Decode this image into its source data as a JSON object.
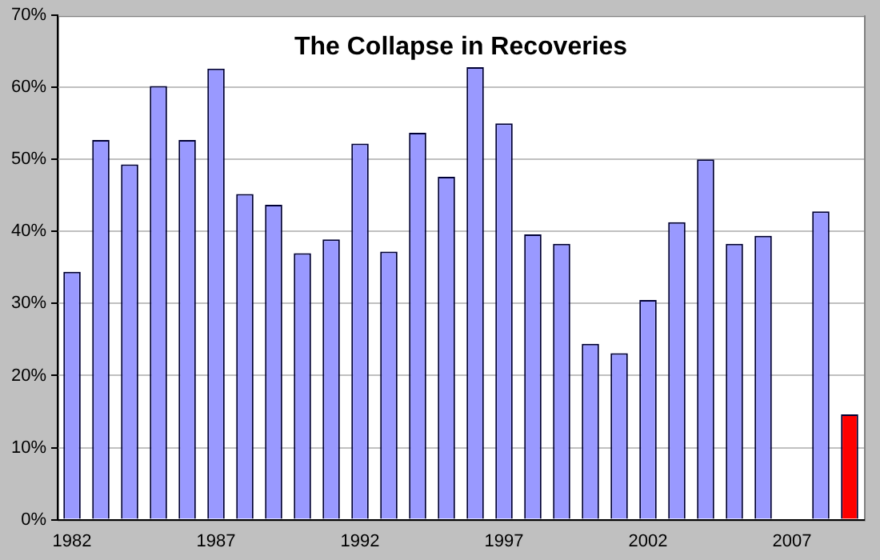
{
  "chart_data": {
    "type": "bar",
    "title": "The Collapse in Recoveries",
    "categories": [
      "1982",
      null,
      null,
      null,
      null,
      "1987",
      null,
      null,
      null,
      null,
      "1992",
      null,
      null,
      null,
      null,
      "1997",
      null,
      null,
      null,
      null,
      "2002",
      null,
      null,
      null,
      null,
      "2007",
      null,
      null
    ],
    "values": [
      34.4,
      52.7,
      49.3,
      60.2,
      52.7,
      62.6,
      45.2,
      43.7,
      37,
      38.9,
      52.2,
      37.2,
      53.7,
      47.6,
      62.8,
      55,
      39.6,
      38.3,
      24.4,
      23.1,
      30.5,
      41.3,
      50,
      38.3,
      39.4,
      null,
      42.8,
      14.6
    ],
    "colors": [
      "#9999ff",
      "#9999ff",
      "#9999ff",
      "#9999ff",
      "#9999ff",
      "#9999ff",
      "#9999ff",
      "#9999ff",
      "#9999ff",
      "#9999ff",
      "#9999ff",
      "#9999ff",
      "#9999ff",
      "#9999ff",
      "#9999ff",
      "#9999ff",
      "#9999ff",
      "#9999ff",
      "#9999ff",
      "#9999ff",
      "#9999ff",
      "#9999ff",
      "#9999ff",
      "#9999ff",
      "#9999ff",
      "#9999ff",
      "#9999ff",
      "#ff0000"
    ],
    "ylim": [
      0,
      70
    ],
    "yticks": [
      {
        "value": 0,
        "label": "0%"
      },
      {
        "value": 10,
        "label": "10%"
      },
      {
        "value": 20,
        "label": "20%"
      },
      {
        "value": 30,
        "label": "30%"
      },
      {
        "value": 40,
        "label": "40%"
      },
      {
        "value": 50,
        "label": "50%"
      },
      {
        "value": 60,
        "label": "60%"
      },
      {
        "value": 70,
        "label": "70%"
      }
    ],
    "grid": "y",
    "legend": false
  }
}
